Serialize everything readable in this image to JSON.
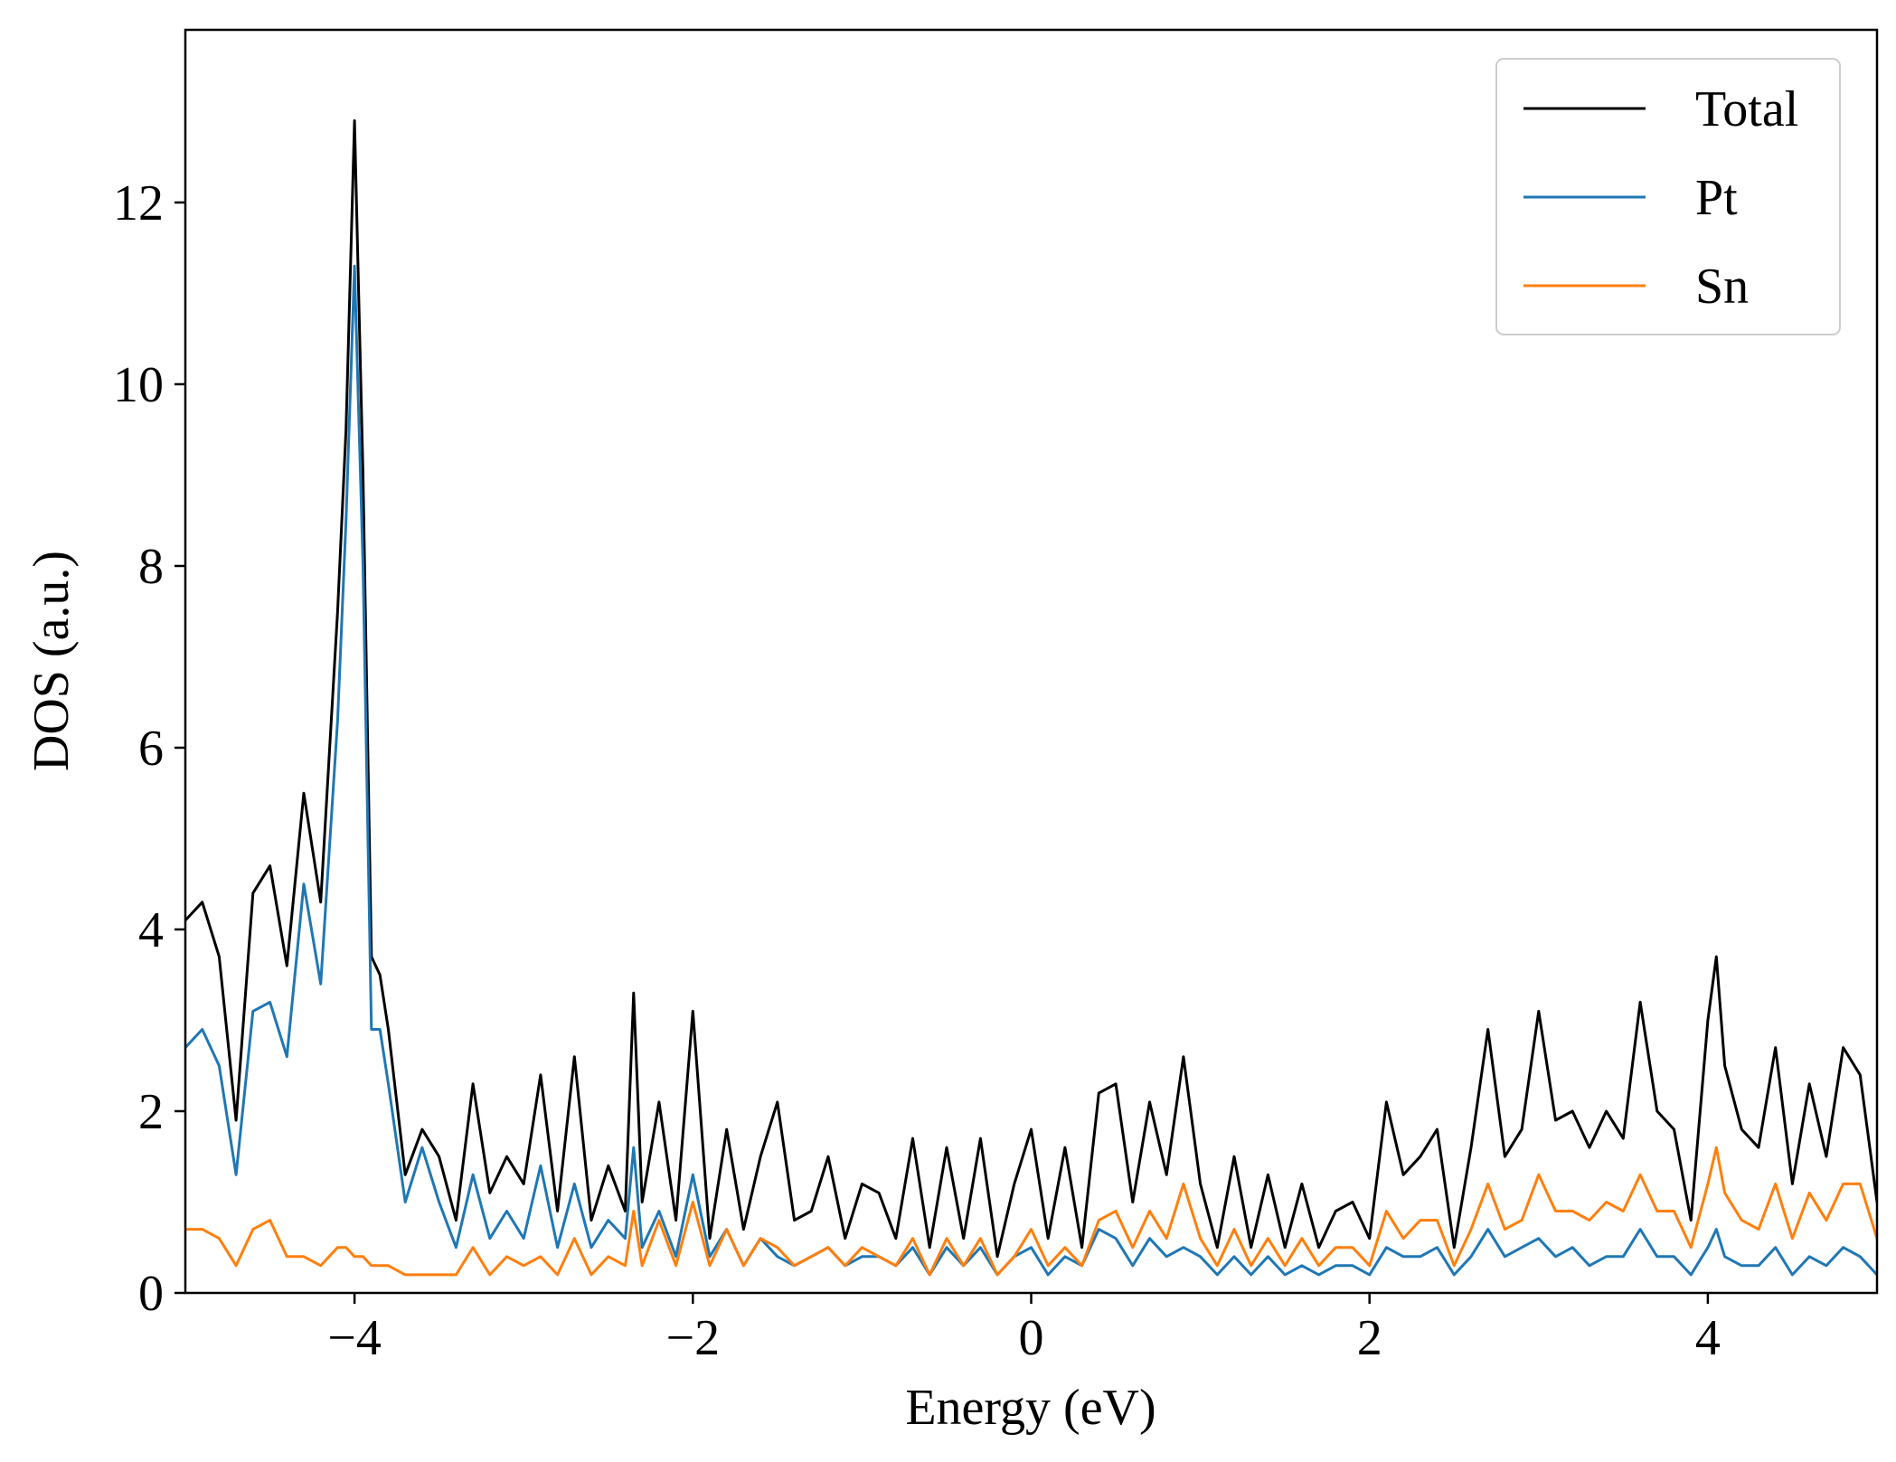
{
  "chart_data": {
    "type": "line",
    "title": "",
    "xlabel": "Energy (eV)",
    "ylabel": "DOS (a.u.)",
    "xlim": [
      -5,
      5
    ],
    "ylim": [
      0,
      13.9
    ],
    "xticks": [
      -4,
      -2,
      0,
      2,
      4
    ],
    "xtick_labels": [
      "−4",
      "−2",
      "0",
      "2",
      "4"
    ],
    "yticks": [
      0,
      2,
      4,
      6,
      8,
      10,
      12
    ],
    "ytick_labels": [
      "0",
      "2",
      "4",
      "6",
      "8",
      "10",
      "12"
    ],
    "grid": false,
    "legend_position": "top-right",
    "x": [
      -5.0,
      -4.9,
      -4.8,
      -4.7,
      -4.6,
      -4.5,
      -4.4,
      -4.3,
      -4.2,
      -4.1,
      -4.05,
      -4.0,
      -3.95,
      -3.9,
      -3.85,
      -3.8,
      -3.7,
      -3.6,
      -3.5,
      -3.4,
      -3.3,
      -3.2,
      -3.1,
      -3.0,
      -2.9,
      -2.8,
      -2.7,
      -2.6,
      -2.5,
      -2.4,
      -2.35,
      -2.3,
      -2.2,
      -2.1,
      -2.0,
      -1.9,
      -1.8,
      -1.7,
      -1.6,
      -1.5,
      -1.4,
      -1.3,
      -1.2,
      -1.1,
      -1.0,
      -0.9,
      -0.8,
      -0.7,
      -0.6,
      -0.5,
      -0.4,
      -0.3,
      -0.2,
      -0.1,
      0.0,
      0.1,
      0.2,
      0.3,
      0.4,
      0.5,
      0.6,
      0.7,
      0.8,
      0.9,
      1.0,
      1.1,
      1.2,
      1.3,
      1.4,
      1.5,
      1.6,
      1.7,
      1.8,
      1.9,
      2.0,
      2.1,
      2.2,
      2.3,
      2.4,
      2.5,
      2.6,
      2.7,
      2.8,
      2.9,
      3.0,
      3.1,
      3.2,
      3.3,
      3.4,
      3.5,
      3.6,
      3.7,
      3.8,
      3.9,
      4.0,
      4.05,
      4.1,
      4.2,
      4.3,
      4.4,
      4.5,
      4.6,
      4.7,
      4.8,
      4.9,
      5.0
    ],
    "series": [
      {
        "name": "Total",
        "color": "#000000",
        "values": [
          4.1,
          4.3,
          3.7,
          1.9,
          4.4,
          4.7,
          3.6,
          5.5,
          4.3,
          7.5,
          9.5,
          12.9,
          9.0,
          3.7,
          3.5,
          2.9,
          1.3,
          1.8,
          1.5,
          0.8,
          2.3,
          1.1,
          1.5,
          1.2,
          2.4,
          0.9,
          2.6,
          0.8,
          1.4,
          0.9,
          3.3,
          1.0,
          2.1,
          0.8,
          3.1,
          0.6,
          1.8,
          0.7,
          1.5,
          2.1,
          0.8,
          0.9,
          1.5,
          0.6,
          1.2,
          1.1,
          0.6,
          1.7,
          0.5,
          1.6,
          0.6,
          1.7,
          0.4,
          1.2,
          1.8,
          0.6,
          1.6,
          0.5,
          2.2,
          2.3,
          1.0,
          2.1,
          1.3,
          2.6,
          1.2,
          0.5,
          1.5,
          0.5,
          1.3,
          0.5,
          1.2,
          0.5,
          0.9,
          1.0,
          0.6,
          2.1,
          1.3,
          1.5,
          1.8,
          0.5,
          1.6,
          2.9,
          1.5,
          1.8,
          3.1,
          1.9,
          2.0,
          1.6,
          2.0,
          1.7,
          3.2,
          2.0,
          1.8,
          0.8,
          3.0,
          3.7,
          2.5,
          1.8,
          1.6,
          2.7,
          1.2,
          2.3,
          1.5,
          2.7,
          2.4,
          1.0
        ]
      },
      {
        "name": "Pt",
        "color": "#1f77b4",
        "values": [
          2.7,
          2.9,
          2.5,
          1.3,
          3.1,
          3.2,
          2.6,
          4.5,
          3.4,
          6.3,
          8.5,
          11.3,
          8.0,
          2.9,
          2.9,
          2.3,
          1.0,
          1.6,
          1.0,
          0.5,
          1.3,
          0.6,
          0.9,
          0.6,
          1.4,
          0.5,
          1.2,
          0.5,
          0.8,
          0.6,
          1.6,
          0.5,
          0.9,
          0.4,
          1.3,
          0.4,
          0.7,
          0.3,
          0.6,
          0.4,
          0.3,
          0.4,
          0.5,
          0.3,
          0.4,
          0.4,
          0.3,
          0.5,
          0.2,
          0.5,
          0.3,
          0.5,
          0.2,
          0.4,
          0.5,
          0.2,
          0.4,
          0.3,
          0.7,
          0.6,
          0.3,
          0.6,
          0.4,
          0.5,
          0.4,
          0.2,
          0.4,
          0.2,
          0.4,
          0.2,
          0.3,
          0.2,
          0.3,
          0.3,
          0.2,
          0.5,
          0.4,
          0.4,
          0.5,
          0.2,
          0.4,
          0.7,
          0.4,
          0.5,
          0.6,
          0.4,
          0.5,
          0.3,
          0.4,
          0.4,
          0.7,
          0.4,
          0.4,
          0.2,
          0.5,
          0.7,
          0.4,
          0.3,
          0.3,
          0.5,
          0.2,
          0.4,
          0.3,
          0.5,
          0.4,
          0.2
        ]
      },
      {
        "name": "Sn",
        "color": "#ff7f0e",
        "values": [
          0.7,
          0.7,
          0.6,
          0.3,
          0.7,
          0.8,
          0.4,
          0.4,
          0.3,
          0.5,
          0.5,
          0.4,
          0.4,
          0.3,
          0.3,
          0.3,
          0.2,
          0.2,
          0.2,
          0.2,
          0.5,
          0.2,
          0.4,
          0.3,
          0.4,
          0.2,
          0.6,
          0.2,
          0.4,
          0.3,
          0.9,
          0.3,
          0.8,
          0.3,
          1.0,
          0.3,
          0.7,
          0.3,
          0.6,
          0.5,
          0.3,
          0.4,
          0.5,
          0.3,
          0.5,
          0.4,
          0.3,
          0.6,
          0.2,
          0.6,
          0.3,
          0.6,
          0.2,
          0.4,
          0.7,
          0.3,
          0.5,
          0.3,
          0.8,
          0.9,
          0.5,
          0.9,
          0.6,
          1.2,
          0.6,
          0.3,
          0.7,
          0.3,
          0.6,
          0.3,
          0.6,
          0.3,
          0.5,
          0.5,
          0.3,
          0.9,
          0.6,
          0.8,
          0.8,
          0.3,
          0.7,
          1.2,
          0.7,
          0.8,
          1.3,
          0.9,
          0.9,
          0.8,
          1.0,
          0.9,
          1.3,
          0.9,
          0.9,
          0.5,
          1.2,
          1.6,
          1.1,
          0.8,
          0.7,
          1.2,
          0.6,
          1.1,
          0.8,
          1.2,
          1.2,
          0.6
        ]
      }
    ]
  }
}
